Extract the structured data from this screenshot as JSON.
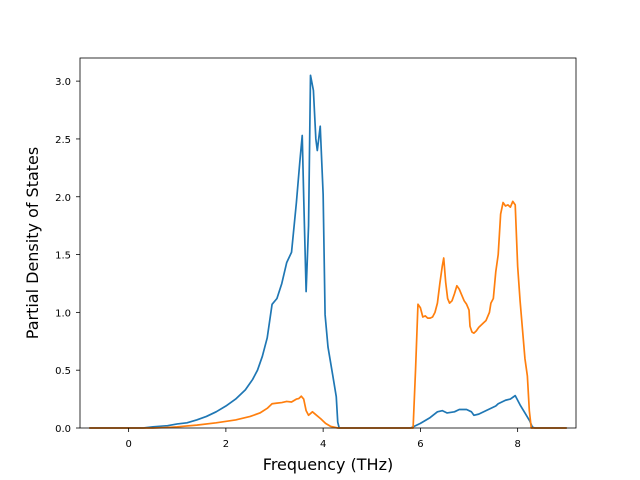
{
  "chart_data": {
    "type": "line",
    "title": "",
    "xlabel": "Frequency (THz)",
    "ylabel": "Partial Density of States",
    "xlim": [
      -1.0,
      9.2
    ],
    "ylim": [
      0.0,
      3.2
    ],
    "grid": false,
    "legend": "none",
    "x_ticks": [
      0,
      2,
      4,
      6,
      8
    ],
    "x_tick_labels": [
      "0",
      "2",
      "4",
      "6",
      "8"
    ],
    "y_ticks": [
      0.0,
      0.5,
      1.0,
      1.5,
      2.0,
      2.5,
      3.0
    ],
    "y_tick_labels": [
      "0.0",
      "0.5",
      "1.0",
      "1.5",
      "2.0",
      "2.5",
      "3.0"
    ],
    "series": [
      {
        "color": "#1f77b4",
        "points": [
          [
            -0.8,
            0.0
          ],
          [
            0.0,
            0.0
          ],
          [
            0.3,
            0.0
          ],
          [
            0.5,
            0.01
          ],
          [
            0.8,
            0.02
          ],
          [
            1.0,
            0.035
          ],
          [
            1.2,
            0.045
          ],
          [
            1.4,
            0.07
          ],
          [
            1.6,
            0.1
          ],
          [
            1.8,
            0.14
          ],
          [
            2.0,
            0.19
          ],
          [
            2.2,
            0.25
          ],
          [
            2.4,
            0.33
          ],
          [
            2.55,
            0.42
          ],
          [
            2.65,
            0.5
          ],
          [
            2.75,
            0.62
          ],
          [
            2.85,
            0.78
          ],
          [
            2.95,
            1.07
          ],
          [
            3.05,
            1.12
          ],
          [
            3.15,
            1.25
          ],
          [
            3.25,
            1.43
          ],
          [
            3.35,
            1.52
          ],
          [
            3.45,
            1.95
          ],
          [
            3.52,
            2.3
          ],
          [
            3.57,
            2.53
          ],
          [
            3.6,
            2.0
          ],
          [
            3.65,
            1.18
          ],
          [
            3.7,
            1.75
          ],
          [
            3.74,
            3.05
          ],
          [
            3.8,
            2.92
          ],
          [
            3.85,
            2.5
          ],
          [
            3.88,
            2.4
          ],
          [
            3.94,
            2.61
          ],
          [
            4.0,
            2.02
          ],
          [
            4.04,
            0.98
          ],
          [
            4.1,
            0.7
          ],
          [
            4.2,
            0.45
          ],
          [
            4.27,
            0.27
          ],
          [
            4.3,
            0.05
          ],
          [
            4.33,
            0.0
          ],
          [
            5.8,
            0.0
          ],
          [
            6.0,
            0.04
          ],
          [
            6.2,
            0.09
          ],
          [
            6.35,
            0.14
          ],
          [
            6.45,
            0.15
          ],
          [
            6.55,
            0.13
          ],
          [
            6.7,
            0.14
          ],
          [
            6.8,
            0.16
          ],
          [
            6.95,
            0.16
          ],
          [
            7.05,
            0.14
          ],
          [
            7.1,
            0.11
          ],
          [
            7.2,
            0.12
          ],
          [
            7.35,
            0.15
          ],
          [
            7.55,
            0.19
          ],
          [
            7.6,
            0.21
          ],
          [
            7.75,
            0.24
          ],
          [
            7.85,
            0.25
          ],
          [
            7.95,
            0.28
          ],
          [
            8.05,
            0.2
          ],
          [
            8.15,
            0.13
          ],
          [
            8.25,
            0.06
          ],
          [
            8.3,
            0.01
          ],
          [
            8.35,
            0.0
          ],
          [
            9.0,
            0.0
          ]
        ]
      },
      {
        "color": "#ff7f0e",
        "points": [
          [
            -0.8,
            0.0
          ],
          [
            0.0,
            0.0
          ],
          [
            0.5,
            0.0
          ],
          [
            0.8,
            0.005
          ],
          [
            1.0,
            0.01
          ],
          [
            1.4,
            0.025
          ],
          [
            1.8,
            0.045
          ],
          [
            2.2,
            0.07
          ],
          [
            2.5,
            0.1
          ],
          [
            2.7,
            0.13
          ],
          [
            2.85,
            0.17
          ],
          [
            2.95,
            0.21
          ],
          [
            3.05,
            0.215
          ],
          [
            3.15,
            0.22
          ],
          [
            3.25,
            0.23
          ],
          [
            3.35,
            0.225
          ],
          [
            3.45,
            0.25
          ],
          [
            3.5,
            0.255
          ],
          [
            3.55,
            0.275
          ],
          [
            3.6,
            0.25
          ],
          [
            3.65,
            0.15
          ],
          [
            3.7,
            0.11
          ],
          [
            3.78,
            0.14
          ],
          [
            3.85,
            0.115
          ],
          [
            3.95,
            0.08
          ],
          [
            4.05,
            0.04
          ],
          [
            4.15,
            0.015
          ],
          [
            4.3,
            0.0
          ],
          [
            5.85,
            0.0
          ],
          [
            5.9,
            0.5
          ],
          [
            5.95,
            1.07
          ],
          [
            6.0,
            1.04
          ],
          [
            6.05,
            0.96
          ],
          [
            6.1,
            0.97
          ],
          [
            6.15,
            0.95
          ],
          [
            6.2,
            0.95
          ],
          [
            6.25,
            0.96
          ],
          [
            6.3,
            1.0
          ],
          [
            6.35,
            1.08
          ],
          [
            6.4,
            1.25
          ],
          [
            6.45,
            1.4
          ],
          [
            6.48,
            1.47
          ],
          [
            6.52,
            1.26
          ],
          [
            6.56,
            1.12
          ],
          [
            6.6,
            1.08
          ],
          [
            6.65,
            1.1
          ],
          [
            6.7,
            1.16
          ],
          [
            6.75,
            1.23
          ],
          [
            6.8,
            1.2
          ],
          [
            6.85,
            1.15
          ],
          [
            6.9,
            1.1
          ],
          [
            6.95,
            1.07
          ],
          [
            7.0,
            1.02
          ],
          [
            7.02,
            0.88
          ],
          [
            7.06,
            0.83
          ],
          [
            7.1,
            0.82
          ],
          [
            7.15,
            0.84
          ],
          [
            7.2,
            0.87
          ],
          [
            7.3,
            0.91
          ],
          [
            7.35,
            0.93
          ],
          [
            7.42,
            1.0
          ],
          [
            7.45,
            1.08
          ],
          [
            7.5,
            1.12
          ],
          [
            7.55,
            1.35
          ],
          [
            7.6,
            1.5
          ],
          [
            7.65,
            1.85
          ],
          [
            7.7,
            1.95
          ],
          [
            7.75,
            1.92
          ],
          [
            7.8,
            1.93
          ],
          [
            7.85,
            1.91
          ],
          [
            7.9,
            1.96
          ],
          [
            7.95,
            1.93
          ],
          [
            8.0,
            1.4
          ],
          [
            8.05,
            1.1
          ],
          [
            8.1,
            0.85
          ],
          [
            8.15,
            0.6
          ],
          [
            8.2,
            0.45
          ],
          [
            8.24,
            0.15
          ],
          [
            8.28,
            0.0
          ],
          [
            9.0,
            0.0
          ]
        ]
      }
    ]
  }
}
